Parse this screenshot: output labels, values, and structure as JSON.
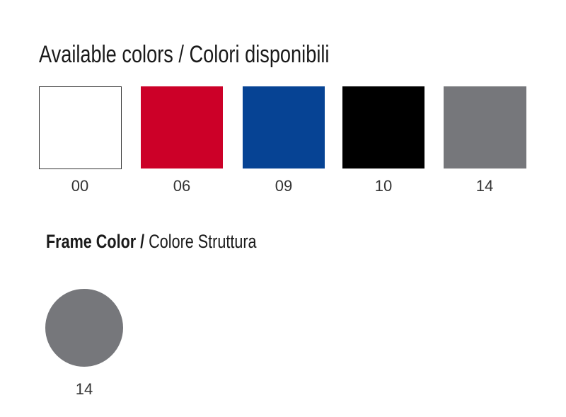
{
  "header": {
    "title_bold": "Available colors /",
    "title_light": "Colori disponibili"
  },
  "swatches": [
    {
      "code": "00"
    },
    {
      "code": "06"
    },
    {
      "code": "09"
    },
    {
      "code": "10"
    },
    {
      "code": "14"
    }
  ],
  "frame": {
    "title_bold": "Frame Color /",
    "title_light": "Colore Struttura",
    "swatches": [
      {
        "code": "14"
      }
    ]
  }
}
